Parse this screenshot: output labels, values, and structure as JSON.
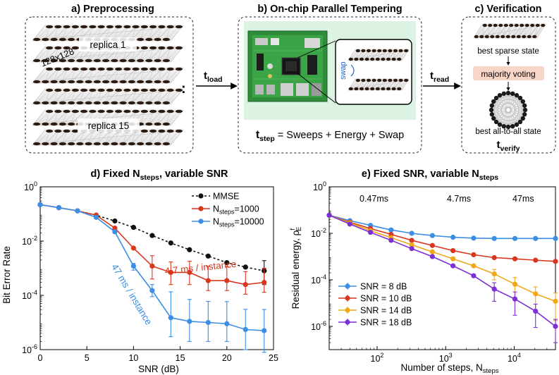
{
  "panels": {
    "a": {
      "title": "a) Preprocessing",
      "size_label": "128x128",
      "replica_top": "replica 1",
      "replica_bottom": "replica 15",
      "ellipsis": ":"
    },
    "b": {
      "title": "b) On-chip Parallel Tempering",
      "swap_label": "swap",
      "t_step": {
        "t": "t",
        "sub": "step",
        "rest": " = Sweeps + Energy + Swap"
      }
    },
    "c": {
      "title": "c) Verification",
      "best_sparse": "best sparse state",
      "majority": "majority voting",
      "best_all": "best all-to-all state",
      "t_verify": {
        "t": "t",
        "sub": "verify"
      }
    },
    "arrows": {
      "load": {
        "t": "t",
        "sub": "load"
      },
      "read": {
        "t": "t",
        "sub": "read"
      }
    }
  },
  "chart_data": [
    {
      "type": "line",
      "title_parts": {
        "pre": "d) Fixed N",
        "sub": "steps",
        "post": ", variable SNR"
      },
      "xlabel": "SNR (dB)",
      "ylabel": "Bit Error Rate",
      "xlim": [
        0,
        25
      ],
      "ylim": [
        1e-06,
        1
      ],
      "yscale": "log",
      "xticks": [
        "0",
        "5",
        "10",
        "15",
        "20",
        "25"
      ],
      "yticks": [
        {
          "base": "10",
          "exp": "0"
        },
        {
          "base": "10",
          "exp": "-2"
        },
        {
          "base": "10",
          "exp": "-4"
        },
        {
          "base": "10",
          "exp": "-6"
        }
      ],
      "legend_position": "top-right",
      "x": [
        0,
        2,
        4,
        6,
        8,
        10,
        12,
        14,
        16,
        18,
        20,
        22,
        24
      ],
      "series": [
        {
          "name": "MMSE",
          "legend": {
            "pre": "MMSE",
            "sub": "",
            "post": ""
          },
          "color": "#111111",
          "dashed": true,
          "values": [
            0.22,
            0.17,
            0.13,
            0.09,
            0.055,
            0.032,
            0.016,
            0.0085,
            0.0048,
            0.0028,
            0.0016,
            0.0011,
            0.0008
          ],
          "err_lo": [
            0,
            0,
            0,
            0,
            0,
            0,
            0,
            0,
            0,
            0,
            0,
            0,
            0.00055
          ],
          "err_hi": [
            0,
            0,
            0,
            0,
            0,
            0,
            0,
            0,
            0,
            0,
            0,
            0,
            0.0011
          ]
        },
        {
          "name": "Nsteps=1000",
          "legend": {
            "pre": "N",
            "sub": "steps",
            "post": "=1000"
          },
          "color": "#d9361e",
          "dashed": false,
          "values": [
            0.22,
            0.17,
            0.13,
            0.09,
            0.03,
            0.0055,
            0.0012,
            0.0007,
            0.0007,
            0.00035,
            0.00035,
            0.00025,
            0.0003
          ],
          "err_lo": [
            0,
            0,
            0,
            0,
            0,
            0,
            0.0008,
            0.00045,
            0.00045,
            0.0002,
            0.0002,
            0.00014,
            0.00017
          ],
          "err_hi": [
            0,
            0,
            0,
            0,
            0,
            0,
            0.0017,
            0.001,
            0.0011,
            0.0008,
            0.0008,
            0.0005,
            0.0007
          ]
        },
        {
          "name": "Nsteps=10000",
          "legend": {
            "pre": "N",
            "sub": "steps",
            "post": "=10000"
          },
          "color": "#3a8ee6",
          "dashed": false,
          "values": [
            0.22,
            0.17,
            0.13,
            0.075,
            0.022,
            0.0012,
            0.00015,
            1.5e-05,
            1.1e-05,
            1e-05,
            9e-06,
            5.5e-06,
            5e-06
          ],
          "err_lo": [
            0,
            0,
            0,
            0,
            0,
            0.00035,
            6e-05,
            1.2e-05,
            9e-06,
            8e-06,
            7e-06,
            4.5e-06,
            4.2e-06
          ],
          "err_hi": [
            0,
            0,
            0,
            0,
            0,
            0.0003,
            0.0001,
            0.00012,
            6e-05,
            5e-05,
            5e-05,
            2.5e-05,
            2.5e-05
          ]
        }
      ],
      "annotations": [
        {
          "text": "4.7 ms / instance",
          "color": "#d9361e"
        },
        {
          "text": "47 ms / instance",
          "color": "#3a8ee6"
        }
      ]
    },
    {
      "type": "line",
      "title_parts": {
        "pre": "e) Fixed SNR, variable N",
        "sub": "steps",
        "post": ""
      },
      "xlabel_parts": {
        "pre": "Number of steps, N",
        "sub": "steps"
      },
      "ylabel_parts": {
        "pre": "Residual energy, ρ",
        "sup": "f",
        "sub": "E"
      },
      "xscale": "log",
      "yscale": "log",
      "xlim": [
        20,
        40000
      ],
      "ylim": [
        1e-07,
        1
      ],
      "xticks": [
        {
          "base": "10",
          "exp": "2"
        },
        {
          "base": "10",
          "exp": "3"
        },
        {
          "base": "10",
          "exp": "4"
        }
      ],
      "yticks": [
        {
          "base": "10",
          "exp": "0"
        },
        {
          "base": "10",
          "exp": "-2"
        },
        {
          "base": "10",
          "exp": "-4"
        },
        {
          "base": "10",
          "exp": "-6"
        }
      ],
      "time_labels": [
        "0.47ms",
        "4.7ms",
        "47ms"
      ],
      "legend_position": "bottom-left",
      "x": [
        20,
        40,
        80,
        160,
        320,
        640,
        1280,
        2560,
        5120,
        10240,
        20480,
        40000
      ],
      "series": [
        {
          "name": "SNR = 8 dB",
          "color": "#3a8ee6",
          "values": [
            0.06,
            0.035,
            0.022,
            0.014,
            0.01,
            0.008,
            0.0068,
            0.0062,
            0.006,
            0.006,
            0.006,
            0.006
          ],
          "err": [
            0,
            0,
            0,
            0,
            0,
            0,
            0,
            0,
            0,
            0,
            0,
            0
          ]
        },
        {
          "name": "SNR = 10 dB",
          "color": "#d9361e",
          "values": [
            0.06,
            0.03,
            0.016,
            0.009,
            0.005,
            0.003,
            0.0018,
            0.0012,
            0.0009,
            0.0008,
            0.0007,
            0.00062
          ],
          "err": [
            0,
            0,
            0,
            0,
            0,
            0,
            0,
            0,
            0,
            0,
            0,
            0
          ]
        },
        {
          "name": "SNR = 14 dB",
          "color": "#f0a818",
          "values": [
            0.06,
            0.028,
            0.013,
            0.0065,
            0.0032,
            0.0016,
            0.0008,
            0.0004,
            0.00018,
            6.5e-05,
            2.5e-05,
            1.2e-05
          ],
          "err": [
            0,
            0,
            0,
            0,
            0,
            0,
            0,
            0,
            0.0001,
            6e-05,
            2.5e-05,
            1.5e-05
          ]
        },
        {
          "name": "SNR = 18 dB",
          "color": "#7b2fd6",
          "values": [
            0.06,
            0.025,
            0.011,
            0.005,
            0.0022,
            0.001,
            0.0004,
            0.00015,
            4e-05,
            1.5e-05,
            4.5e-06,
            1e-06
          ],
          "err": [
            0,
            0,
            0,
            0,
            0,
            0,
            0,
            0,
            3.5e-05,
            1.5e-05,
            4.5e-06,
            1e-06
          ]
        }
      ]
    }
  ]
}
